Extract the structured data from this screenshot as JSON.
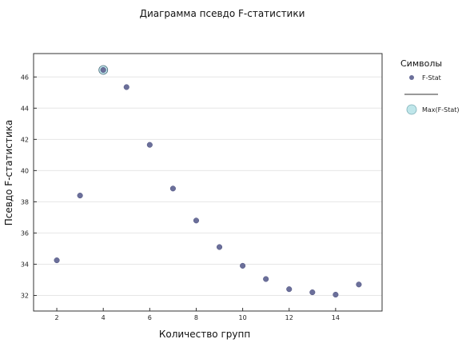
{
  "chart_data": {
    "type": "scatter",
    "title": "Диаграмма псевдо F-статистики",
    "xlabel": "Количество групп",
    "ylabel": "Псевдо F-статистика",
    "xlim": [
      1,
      16
    ],
    "ylim": [
      31,
      47.5
    ],
    "xticks": [
      2,
      4,
      6,
      8,
      10,
      12,
      14
    ],
    "yticks": [
      32,
      34,
      36,
      38,
      40,
      42,
      44,
      46
    ],
    "grid": "horizontal",
    "legend_placement": "right",
    "legend_title": "Символы",
    "series": [
      {
        "name": "F-Stat",
        "color": "#6b6f9a",
        "x": [
          2,
          3,
          4,
          5,
          6,
          7,
          8,
          9,
          10,
          11,
          12,
          13,
          14,
          15
        ],
        "y": [
          34.25,
          38.4,
          46.45,
          45.35,
          41.65,
          38.85,
          36.8,
          35.1,
          33.9,
          33.05,
          32.4,
          32.2,
          32.05,
          32.7
        ]
      },
      {
        "name": "Max(F-Stat)",
        "color": "#bfe6ea",
        "x": [
          4
        ],
        "y": [
          46.45
        ]
      }
    ]
  }
}
